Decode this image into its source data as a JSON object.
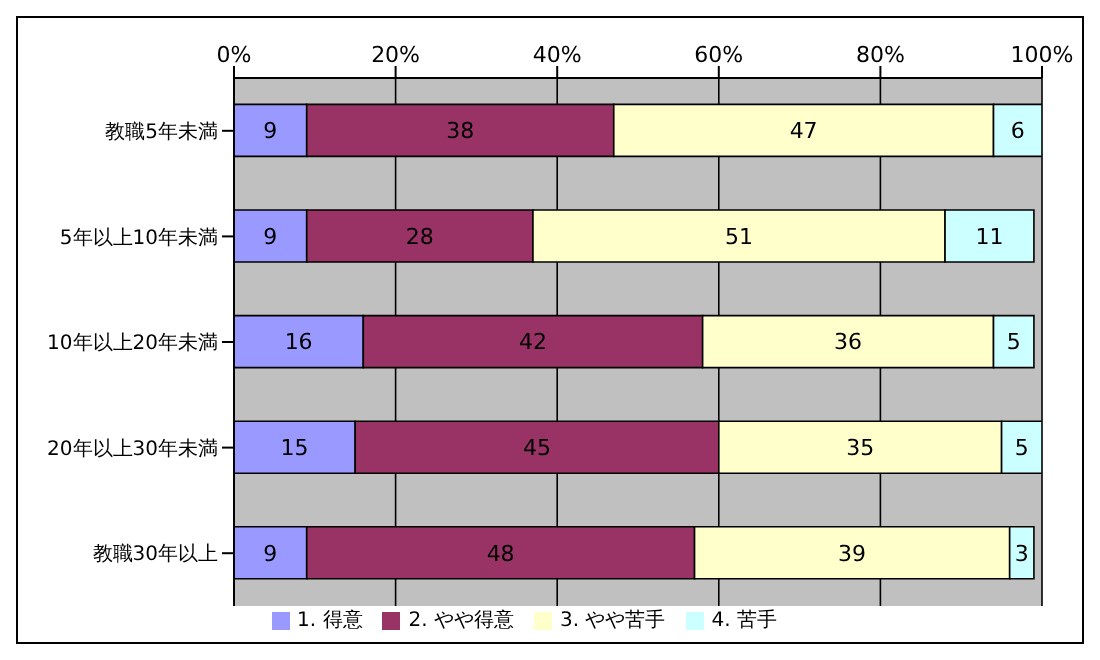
{
  "chart_data": {
    "type": "bar",
    "orientation": "horizontal",
    "stacked": true,
    "categories": [
      "教職5年未満",
      "5年以上10年未満",
      "10年以上20年未満",
      "20年以上30年未満",
      "教職30年以上"
    ],
    "series": [
      {
        "name": "1. 得意",
        "color": "#9999ff",
        "values": [
          9,
          9,
          16,
          15,
          9
        ]
      },
      {
        "name": "2. やや得意",
        "color": "#993366",
        "values": [
          38,
          28,
          42,
          45,
          48
        ]
      },
      {
        "name": "3. やや苦手",
        "color": "#ffffcc",
        "values": [
          47,
          51,
          36,
          35,
          39
        ]
      },
      {
        "name": "4. 苦手",
        "color": "#ccffff",
        "values": [
          6,
          11,
          5,
          5,
          3
        ]
      }
    ],
    "xlim": [
      0,
      100
    ],
    "xticks": [
      {
        "value": 0,
        "label": "0%"
      },
      {
        "value": 20,
        "label": "20%"
      },
      {
        "value": 40,
        "label": "40%"
      },
      {
        "value": 60,
        "label": "60%"
      },
      {
        "value": 80,
        "label": "80%"
      },
      {
        "value": 100,
        "label": "100%"
      }
    ],
    "grid": "x",
    "legend": "bottom",
    "data_labels": true
  }
}
